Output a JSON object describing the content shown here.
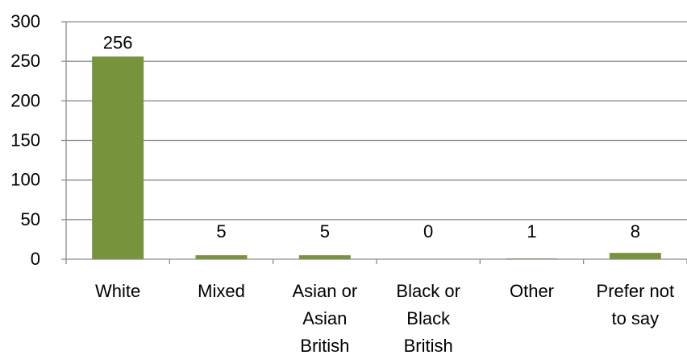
{
  "chart_data": {
    "type": "bar",
    "categories": [
      "White",
      "Mixed",
      "Asian or Asian British",
      "Black or Black British",
      "Other",
      "Prefer not to say"
    ],
    "category_label_lines": [
      [
        "White"
      ],
      [
        "Mixed"
      ],
      [
        "Asian or",
        "Asian",
        "British"
      ],
      [
        "Black or",
        "Black",
        "British"
      ],
      [
        "Other"
      ],
      [
        "Prefer not",
        "to say"
      ]
    ],
    "values": [
      256,
      5,
      5,
      0,
      1,
      8
    ],
    "data_labels": [
      "256",
      "5",
      "5",
      "0",
      "1",
      "8"
    ],
    "title": "",
    "xlabel": "",
    "ylabel": "",
    "ylim": [
      0,
      300
    ],
    "yticks": [
      0,
      50,
      100,
      150,
      200,
      250,
      300
    ],
    "grid": true,
    "legend": "none",
    "bar_color": "#77933C",
    "grid_color": "#8c8c8c",
    "axis_color": "#8c8c8c"
  }
}
